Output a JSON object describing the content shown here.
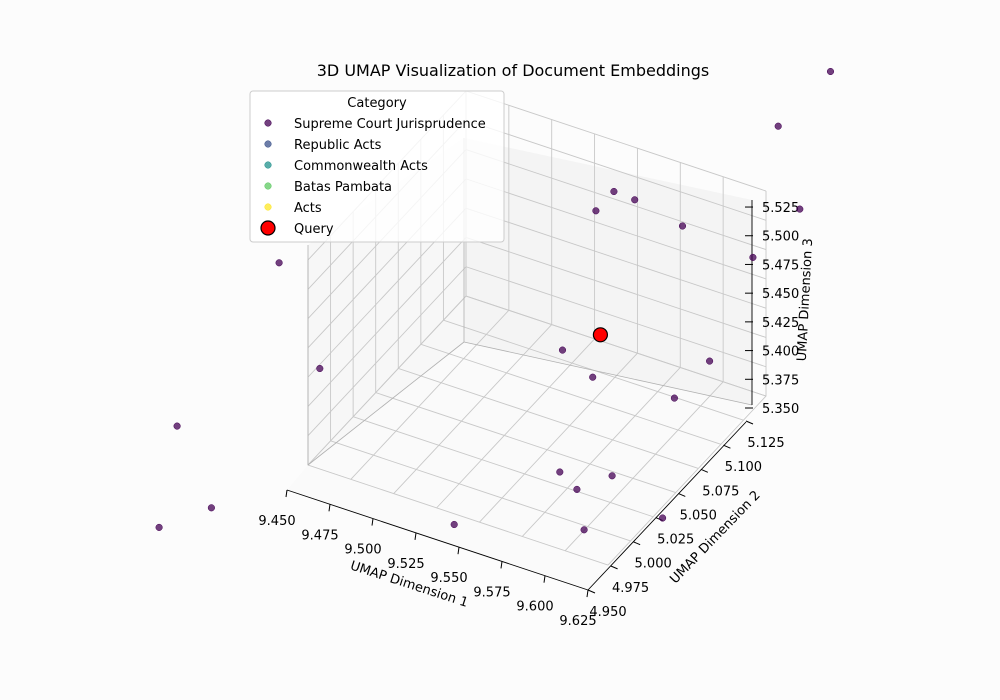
{
  "chart_data": {
    "type": "scatter",
    "title": "3D UMAP Visualization of Document Embeddings",
    "xlabel": "UMAP Dimension 1",
    "ylabel": "UMAP Dimension 2",
    "zlabel": "UMAP Dimension 3",
    "x_ticks": [
      "9.450",
      "9.475",
      "9.500",
      "9.525",
      "9.550",
      "9.575",
      "9.600",
      "9.625"
    ],
    "y_ticks": [
      "4.950",
      "4.975",
      "5.000",
      "5.025",
      "5.050",
      "5.075",
      "5.100",
      "5.125"
    ],
    "z_ticks": [
      "5.350",
      "5.375",
      "5.400",
      "5.425",
      "5.450",
      "5.475",
      "5.500",
      "5.525"
    ],
    "grid": true,
    "legend": {
      "title": "Category",
      "placement": "upper-left",
      "entries": [
        {
          "label": "Supreme Court Jurisprudence",
          "color": "#440154"
        },
        {
          "label": "Republic Acts",
          "color": "#3b528b"
        },
        {
          "label": "Commonwealth Acts",
          "color": "#21918c"
        },
        {
          "label": "Batas Pambata",
          "color": "#5ec962"
        },
        {
          "label": "Acts",
          "color": "#fde725"
        },
        {
          "label": "Query",
          "color": "#ff0000"
        }
      ]
    },
    "series": [
      {
        "name": "Supreme Court Jurisprudence",
        "color": "#440154",
        "points": [
          {
            "x": 9.56,
            "y": 5.06,
            "z": 5.53
          },
          {
            "x": 9.56,
            "y": 5.08,
            "z": 5.53
          },
          {
            "x": 9.58,
            "y": 5.065,
            "z": 5.545
          },
          {
            "x": 9.6,
            "y": 5.08,
            "z": 5.52
          },
          {
            "x": 9.47,
            "y": 4.88,
            "z": 5.59
          },
          {
            "x": 9.64,
            "y": 5.11,
            "z": 5.6
          },
          {
            "x": 9.66,
            "y": 5.13,
            "z": 5.64
          },
          {
            "x": 9.65,
            "y": 5.115,
            "z": 5.53
          },
          {
            "x": 9.62,
            "y": 5.12,
            "z": 5.47
          },
          {
            "x": 9.6,
            "y": 5.11,
            "z": 5.38
          },
          {
            "x": 9.59,
            "y": 5.09,
            "z": 5.36
          },
          {
            "x": 9.53,
            "y": 5.08,
            "z": 5.38
          },
          {
            "x": 9.545,
            "y": 5.085,
            "z": 5.36
          },
          {
            "x": 9.56,
            "y": 5.02,
            "z": 5.34
          },
          {
            "x": 9.57,
            "y": 5.02,
            "z": 5.33
          },
          {
            "x": 9.58,
            "y": 5.04,
            "z": 5.33
          },
          {
            "x": 9.59,
            "y": 4.99,
            "z": 5.33
          },
          {
            "x": 9.62,
            "y": 5.02,
            "z": 5.33
          },
          {
            "x": 9.53,
            "y": 4.96,
            "z": 5.33
          },
          {
            "x": 9.42,
            "y": 5.02,
            "z": 5.36
          },
          {
            "x": 9.4,
            "y": 4.9,
            "z": 5.4
          },
          {
            "x": 9.42,
            "y": 4.9,
            "z": 5.34
          },
          {
            "x": 9.4,
            "y": 4.88,
            "z": 5.33
          }
        ]
      },
      {
        "name": "Query",
        "color": "#ff0000",
        "points": [
          {
            "x": 9.56,
            "y": 5.065,
            "z": 5.42
          }
        ]
      }
    ]
  }
}
